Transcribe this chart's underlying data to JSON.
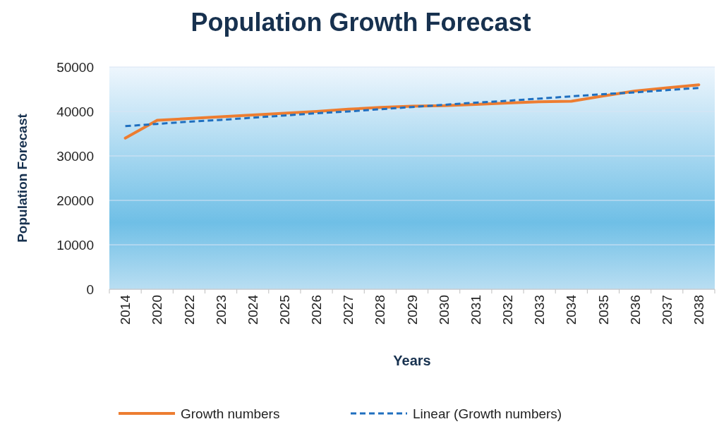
{
  "chart_data": {
    "type": "line",
    "title": "Population Growth Forecast",
    "xlabel": "Years",
    "ylabel": "Population Forecast",
    "categories": [
      "2014",
      "2020",
      "2022",
      "2023",
      "2024",
      "2025",
      "2026",
      "2027",
      "2028",
      "2029",
      "2030",
      "2031",
      "2032",
      "2033",
      "2034",
      "2035",
      "2036",
      "2037",
      "2038"
    ],
    "series": [
      {
        "name": "Growth numbers",
        "color": "#ed7d31",
        "line_style": "solid",
        "values": [
          34000,
          38000,
          38400,
          38800,
          39200,
          39600,
          40000,
          40500,
          40900,
          41200,
          41300,
          41600,
          41900,
          42200,
          42300,
          43500,
          44600,
          45300,
          46000
        ]
      },
      {
        "name": "Linear (Growth numbers)",
        "color": "#1f6fbf",
        "line_style": "dashed",
        "values": [
          36700,
          37200,
          37700,
          38100,
          38600,
          39100,
          39600,
          40000,
          40500,
          41000,
          41500,
          42000,
          42400,
          42900,
          43400,
          43900,
          44300,
          44800,
          45300
        ]
      }
    ],
    "ylim": [
      0,
      50000
    ],
    "yticks": [
      0,
      10000,
      20000,
      30000,
      40000,
      50000
    ],
    "grid": "y",
    "legend": "bottom",
    "marker": "none"
  }
}
